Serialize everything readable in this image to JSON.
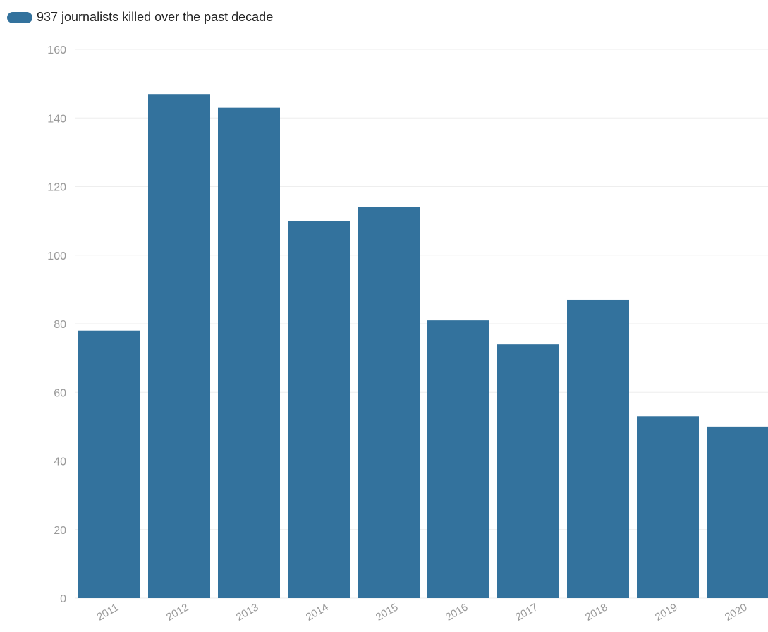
{
  "colors": {
    "bar": "#33729d",
    "grid": "#eeeeee",
    "tick_label": "#999999",
    "legend_text": "#222222"
  },
  "chart_data": {
    "type": "bar",
    "categories": [
      "2011",
      "2012",
      "2013",
      "2014",
      "2015",
      "2016",
      "2017",
      "2018",
      "2019",
      "2020"
    ],
    "series": [
      {
        "name": "937 journalists killed over the past decade",
        "values": [
          78,
          147,
          143,
          110,
          114,
          81,
          74,
          87,
          53,
          50
        ]
      }
    ],
    "ylim": [
      0,
      160
    ],
    "yticks": [
      0,
      20,
      40,
      60,
      80,
      100,
      120,
      140,
      160
    ],
    "grid": true,
    "legend_position": "top-left",
    "x_tick_rotation": "rotated"
  }
}
